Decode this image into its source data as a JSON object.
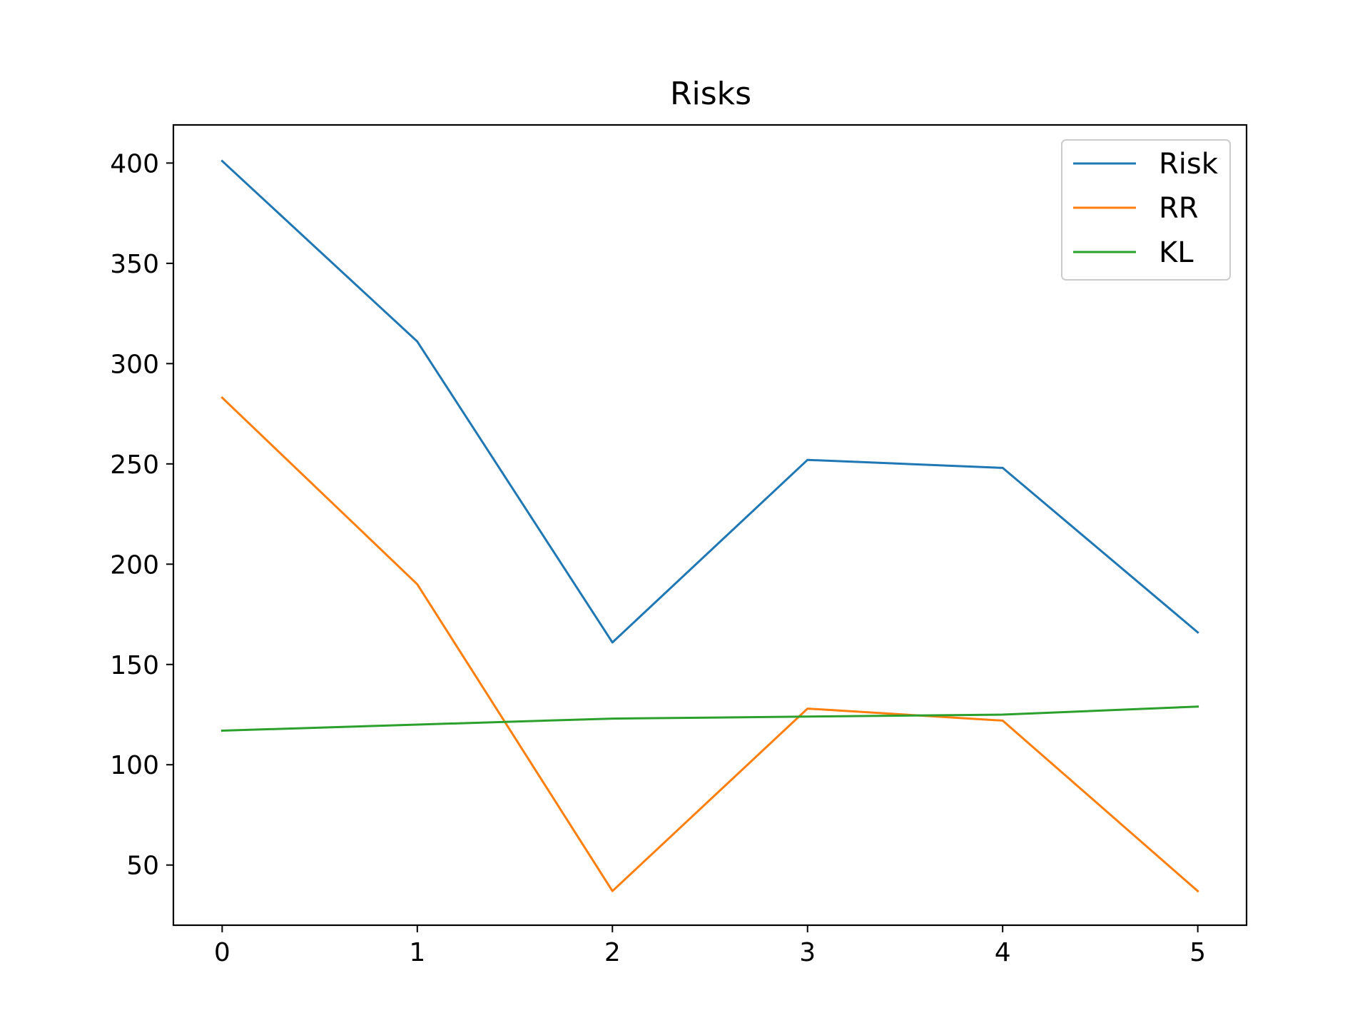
{
  "chart_data": {
    "type": "line",
    "title": "Risks",
    "xlabel": "",
    "ylabel": "",
    "x": [
      0,
      1,
      2,
      3,
      4,
      5
    ],
    "xlim": [
      -0.25,
      5.25
    ],
    "ylim": [
      20,
      419
    ],
    "xticks": [
      0,
      1,
      2,
      3,
      4,
      5
    ],
    "yticks": [
      50,
      100,
      150,
      200,
      250,
      300,
      350,
      400
    ],
    "grid": false,
    "legend_position": "top-right",
    "series": [
      {
        "name": "Risk",
        "color": "#1f77b4",
        "values": [
          401,
          311,
          161,
          252,
          248,
          166
        ]
      },
      {
        "name": "RR",
        "color": "#ff7f0e",
        "values": [
          283,
          190,
          37,
          128,
          122,
          37
        ]
      },
      {
        "name": "KL",
        "color": "#2ca02c",
        "values": [
          117,
          120,
          123,
          124,
          125,
          129
        ]
      }
    ]
  }
}
